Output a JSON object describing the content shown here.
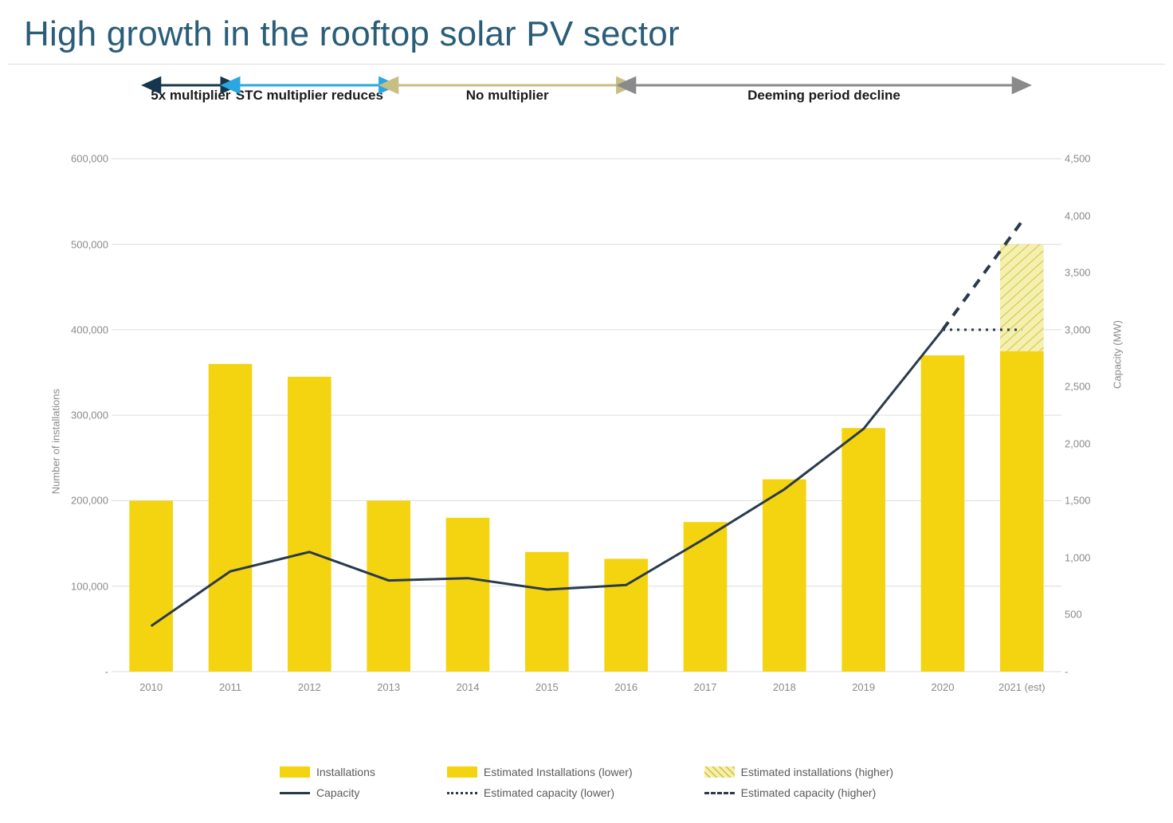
{
  "title": "High growth in the rooftop solar PV sector",
  "chart": {
    "type": "bar+line (dual-axis)",
    "background_color": "#ffffff",
    "grid_color": "#dcdcdc",
    "categories": [
      "2010",
      "2011",
      "2012",
      "2013",
      "2014",
      "2015",
      "2016",
      "2017",
      "2018",
      "2019",
      "2020",
      "2021 (est)"
    ],
    "bars": {
      "label": "Installations",
      "values": [
        200000,
        360000,
        345000,
        200000,
        180000,
        140000,
        132000,
        175000,
        225000,
        285000,
        370000,
        375000
      ],
      "color": "#f4d411",
      "width_fraction": 0.55
    },
    "bars_est_high_extra": {
      "label": "Estimated installations (higher)",
      "index": 11,
      "extra_value": 125000,
      "color": "#f4f0b0",
      "pattern": true
    },
    "bars_est_low": {
      "label": "Estimated Installations (lower)",
      "color": "#f4d411"
    },
    "capacity_line": {
      "label": "Capacity",
      "values_mw": [
        400,
        880,
        1050,
        800,
        820,
        720,
        760,
        1170,
        1600,
        2130,
        3000
      ],
      "color": "#2a3a4d",
      "width": 3
    },
    "capacity_est_lower": {
      "label": "Estimated capacity (lower)",
      "from_index": 10,
      "values_mw": [
        3000,
        3000
      ],
      "color": "#2a3a4d",
      "dash": "3,6",
      "width": 3
    },
    "capacity_est_higher": {
      "label": "Estimated capacity (higher)",
      "from_index": 10,
      "values_mw": [
        3000,
        3950
      ],
      "color": "#2a3a4d",
      "dash": "12,10",
      "width": 4
    },
    "y_left": {
      "label": "Number of installations",
      "min": 0,
      "max": 600000,
      "ticks": [
        0,
        100000,
        200000,
        300000,
        400000,
        500000,
        600000
      ],
      "tick_labels": [
        "-",
        "100,000",
        "200,000",
        "300,000",
        "400,000",
        "500,000",
        "600,000"
      ]
    },
    "y_right": {
      "label": "Capacity (MW)",
      "min": 0,
      "max": 4500,
      "ticks": [
        0,
        500,
        1000,
        1500,
        2000,
        2500,
        3000,
        3500,
        4000,
        4500
      ],
      "tick_labels": [
        "-",
        "500",
        "1,000",
        "1,500",
        "2,000",
        "2,500",
        "3,000",
        "3,500",
        "4,000",
        "4,500"
      ]
    },
    "annotations": [
      {
        "label": "5x multiplier",
        "from_index": 0,
        "to_index": 1,
        "color": "#15364c"
      },
      {
        "label": "STC multiplier reduces",
        "from_index": 1,
        "to_index": 3,
        "color": "#2aa7e0"
      },
      {
        "label": "No multiplier",
        "from_index": 3,
        "to_index": 6,
        "color": "#c7be86"
      },
      {
        "label": "Deeming period decline",
        "from_index": 6,
        "to_index": 11,
        "color": "#8a8a8a"
      }
    ],
    "legend": [
      {
        "kind": "bar",
        "label": "Installations",
        "color": "#f4d411",
        "pattern": false
      },
      {
        "kind": "bar",
        "label": "Estimated Installations (lower)",
        "color": "#f4d411",
        "pattern": false
      },
      {
        "kind": "bar",
        "label": "Estimated installations (higher)",
        "color": "#f4f0b0",
        "pattern": true
      },
      {
        "kind": "line",
        "label": "Capacity",
        "color": "#2a3a4d",
        "dash": ""
      },
      {
        "kind": "line",
        "label": "Estimated capacity (lower)",
        "color": "#2a3a4d",
        "dash": "3,6"
      },
      {
        "kind": "line",
        "label": "Estimated capacity (higher)",
        "color": "#2a3a4d",
        "dash": "12,10"
      }
    ]
  }
}
